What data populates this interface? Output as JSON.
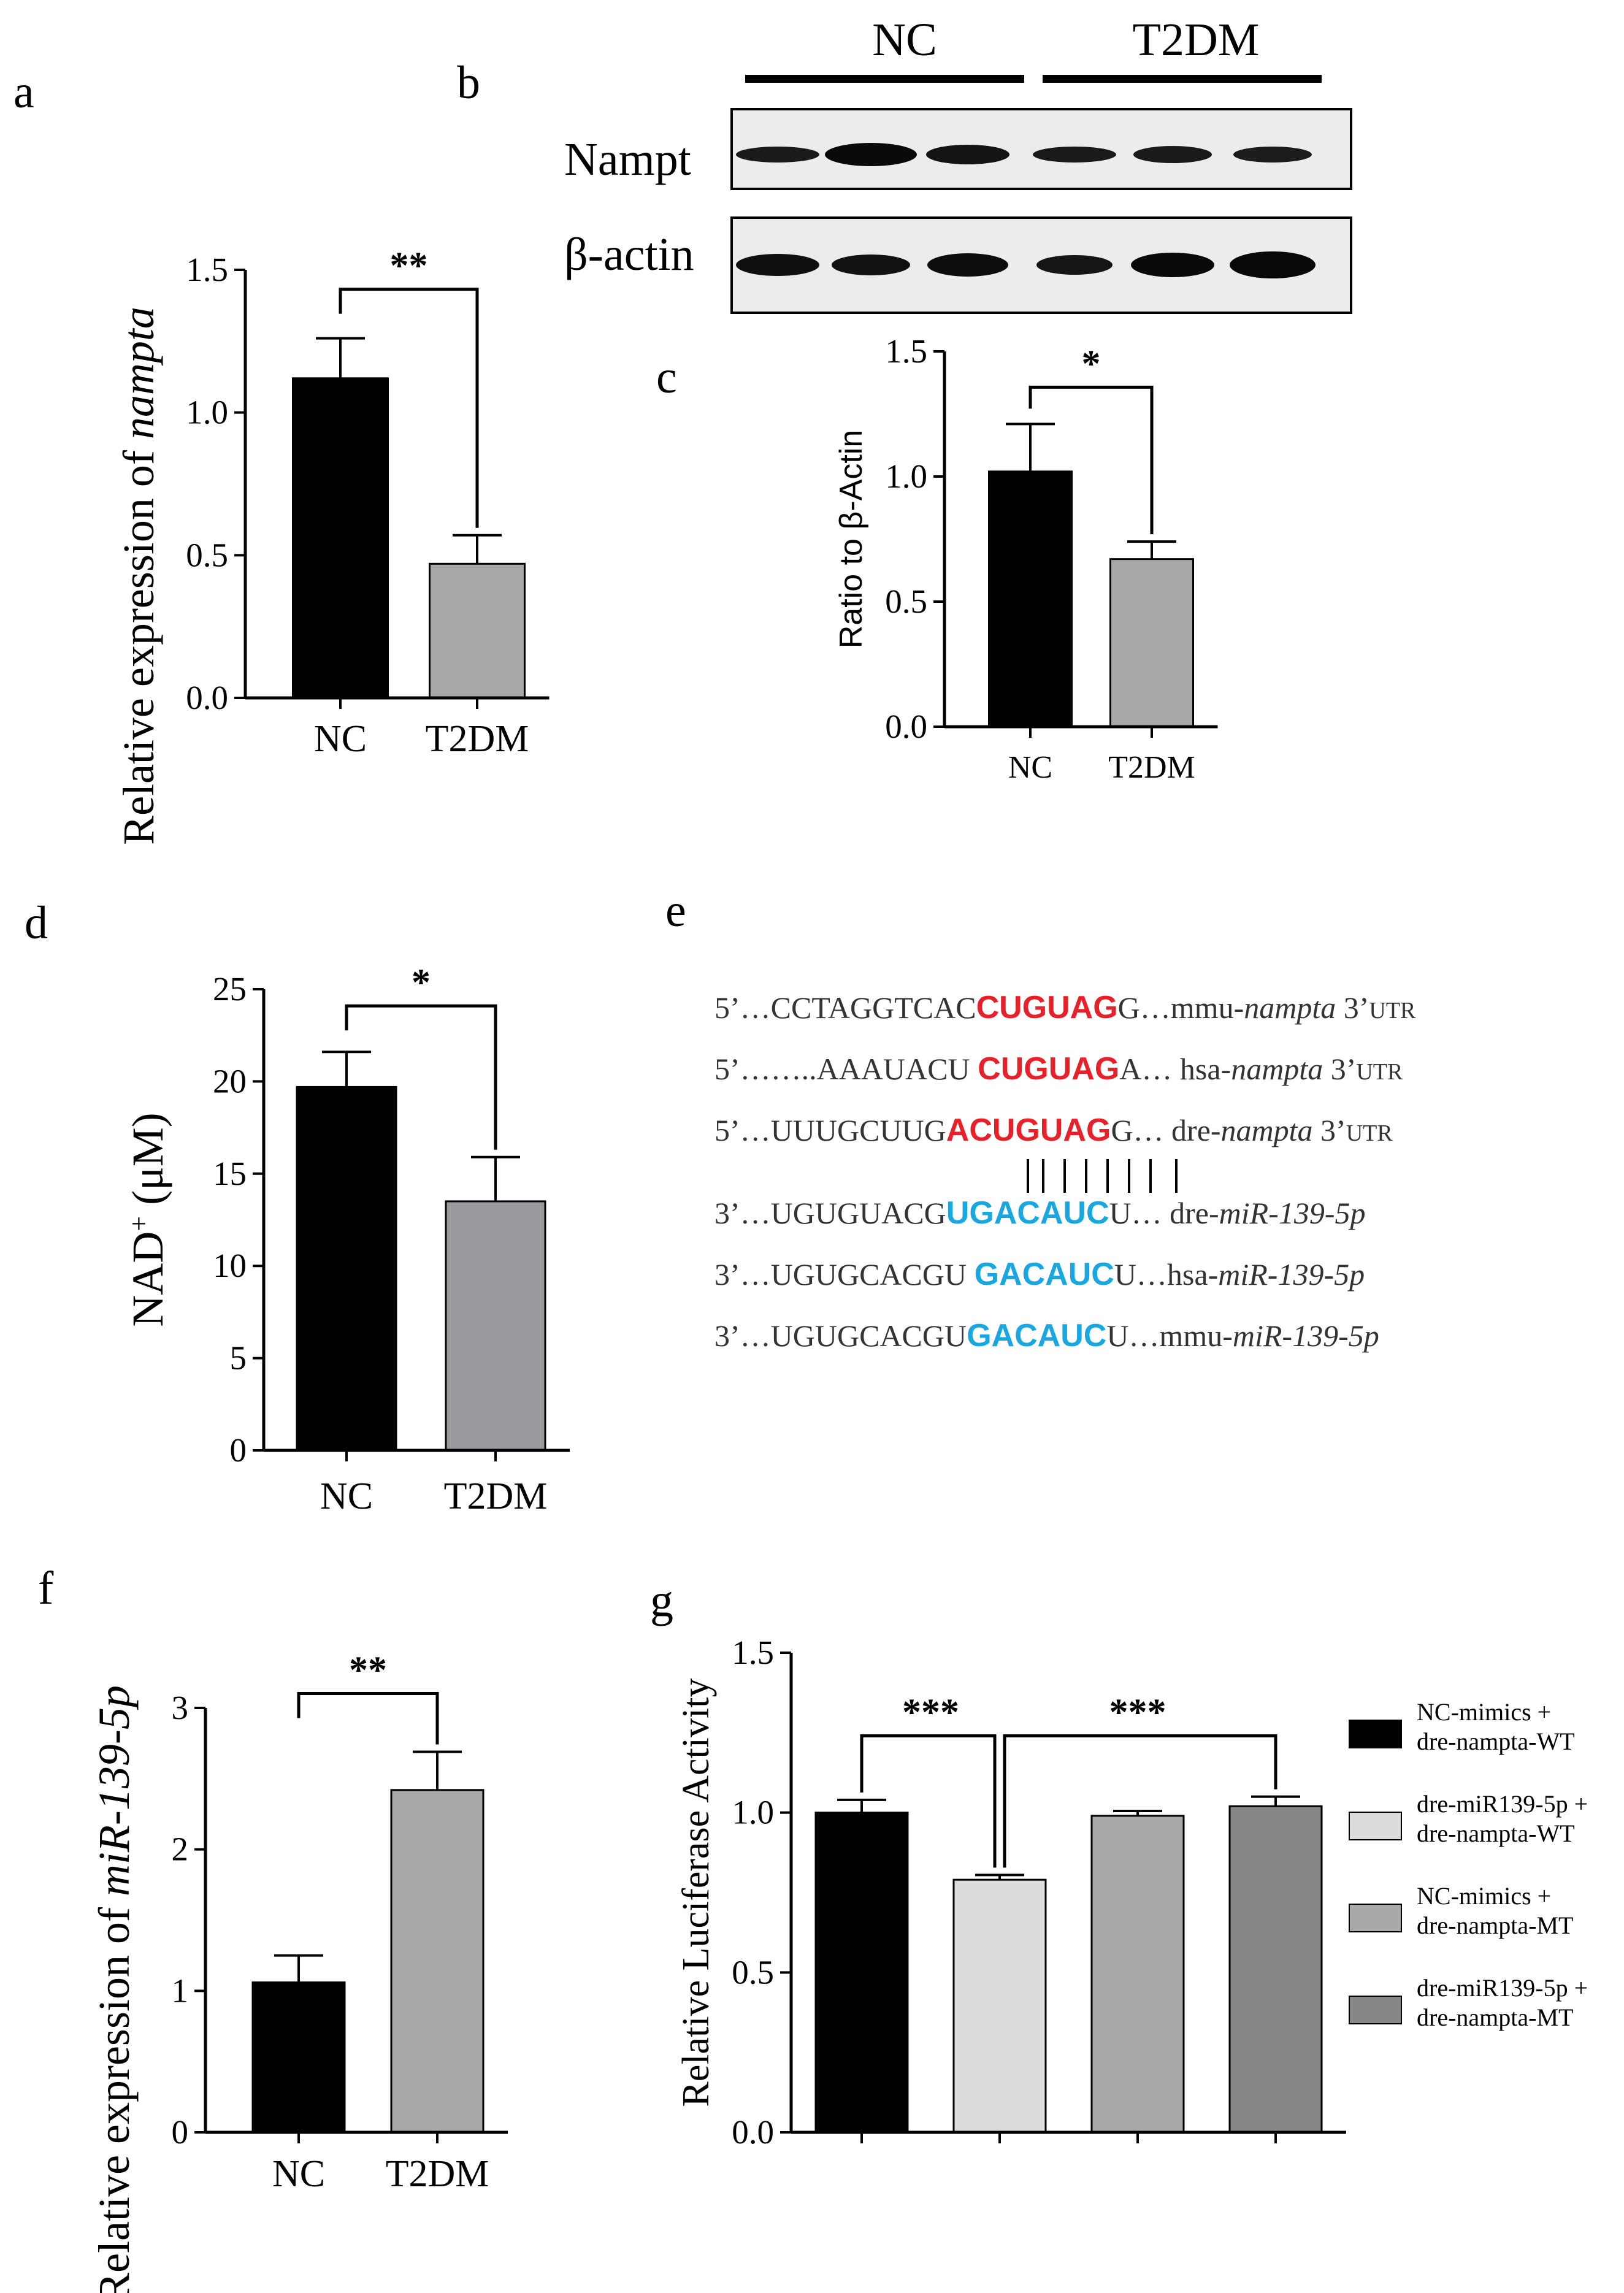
{
  "panels": {
    "a": "a",
    "b": "b",
    "c": "c",
    "d": "d",
    "e": "e",
    "f": "f",
    "g": "g"
  },
  "blot": {
    "group_labels": [
      "NC",
      "T2DM"
    ],
    "row_labels": [
      "Nampt",
      "β-actin"
    ]
  },
  "sequences": [
    {
      "pre": "5’…CCTAGGTCAC",
      "seed": "CUGUAG",
      "post": "G…mmu-",
      "gene": "nampta",
      "tail": " 3’",
      "sub": "UTR",
      "seed_color": "#e8202a"
    },
    {
      "pre": "5’……..AAAUACU ",
      "seed": "CUGUAG",
      "post": "A… hsa-",
      "gene": "nampta",
      "tail": " 3’",
      "sub": "UTR",
      "seed_color": "#e8202a"
    },
    {
      "pre": "5’…UUUGCUUG",
      "seed": "ACUGUAG",
      "post": "G… dre-",
      "gene": "nampta",
      "tail": " 3’",
      "sub": "UTR",
      "seed_color": "#e8202a"
    },
    {
      "pre": "3’…UGUGUACG",
      "seed": "UGACAUC",
      "post": "U… dre-",
      "gene": "miR-139-5p",
      "tail": "",
      "sub": "",
      "seed_color": "#18a7e0"
    },
    {
      "pre": "3’…UGUGCACGU ",
      "seed": "GACAUC",
      "post": "U…hsa-",
      "gene": "miR-139-5p",
      "tail": "",
      "sub": "",
      "seed_color": "#18a7e0"
    },
    {
      "pre": "3’…UGUGCACGU",
      "seed": "GACAUC",
      "post": "U…mmu-",
      "gene": "miR-139-5p",
      "tail": "",
      "sub": "",
      "seed_color": "#18a7e0"
    }
  ],
  "chart_data": [
    {
      "id": "a",
      "type": "bar",
      "categories": [
        "NC",
        "T2DM"
      ],
      "values": [
        1.12,
        0.47
      ],
      "errors": [
        0.14,
        0.1
      ],
      "colors": [
        "#000000",
        "#a8a8a8"
      ],
      "ylabel": "Relative expression of ",
      "ylabel_italic": "nampta",
      "ylim": [
        0,
        1.5
      ],
      "yticks": [
        "0.0",
        "0.5",
        "1.0",
        "1.5"
      ],
      "significance": "**"
    },
    {
      "id": "c",
      "type": "bar",
      "categories": [
        "NC",
        "T2DM"
      ],
      "values": [
        1.02,
        0.67
      ],
      "errors": [
        0.19,
        0.07
      ],
      "colors": [
        "#000000",
        "#a8a8a8"
      ],
      "ylabel": "Ratio to β-Actin",
      "ylim": [
        0,
        1.5
      ],
      "yticks": [
        "0.0",
        "0.5",
        "1.0",
        "1.5"
      ],
      "significance": "*"
    },
    {
      "id": "d",
      "type": "bar",
      "categories": [
        "NC",
        "T2DM"
      ],
      "values": [
        19.7,
        13.5
      ],
      "errors": [
        1.9,
        2.4
      ],
      "colors": [
        "#000000",
        "#9a9a9e"
      ],
      "ylabel": "NAD",
      "ylabel_sup": "+",
      "ylabel_unit": " (μM)",
      "ylim": [
        0,
        25
      ],
      "yticks": [
        "0",
        "5",
        "10",
        "15",
        "20",
        "25"
      ],
      "significance": "*"
    },
    {
      "id": "f",
      "type": "bar",
      "categories": [
        "NC",
        "T2DM"
      ],
      "values": [
        1.06,
        2.42
      ],
      "errors": [
        0.19,
        0.27
      ],
      "colors": [
        "#000000",
        "#a8a8a8"
      ],
      "ylabel": "Relative expression of ",
      "ylabel_italic": "miR-139-5p",
      "ylim": [
        0,
        3
      ],
      "yticks": [
        "0",
        "1",
        "2",
        "3"
      ],
      "significance": "**"
    },
    {
      "id": "g",
      "type": "bar",
      "categories": [
        "",
        "",
        "",
        ""
      ],
      "values": [
        1.0,
        0.79,
        0.99,
        1.02
      ],
      "errors": [
        0.04,
        0.015,
        0.015,
        0.03
      ],
      "colors": [
        "#000000",
        "#dcdcdc",
        "#a9a9a9",
        "#878787"
      ],
      "ylabel": "Relative Luciferase Activity",
      "ylim": [
        0,
        1.5
      ],
      "yticks": [
        "0.0",
        "0.5",
        "1.0",
        "1.5"
      ],
      "significance": [
        "***",
        "***"
      ],
      "legend": [
        {
          "line1": "NC-mimics +",
          "line2": "dre-nampta-WT",
          "color": "#000000"
        },
        {
          "line1": "dre-miR139-5p +",
          "line2": "dre-nampta-WT",
          "color": "#dcdcdc"
        },
        {
          "line1": "NC-mimics +",
          "line2": "dre-nampta-MT",
          "color": "#a9a9a9"
        },
        {
          "line1": "dre-miR139-5p +",
          "line2": "dre-nampta-MT",
          "color": "#878787"
        }
      ]
    }
  ]
}
